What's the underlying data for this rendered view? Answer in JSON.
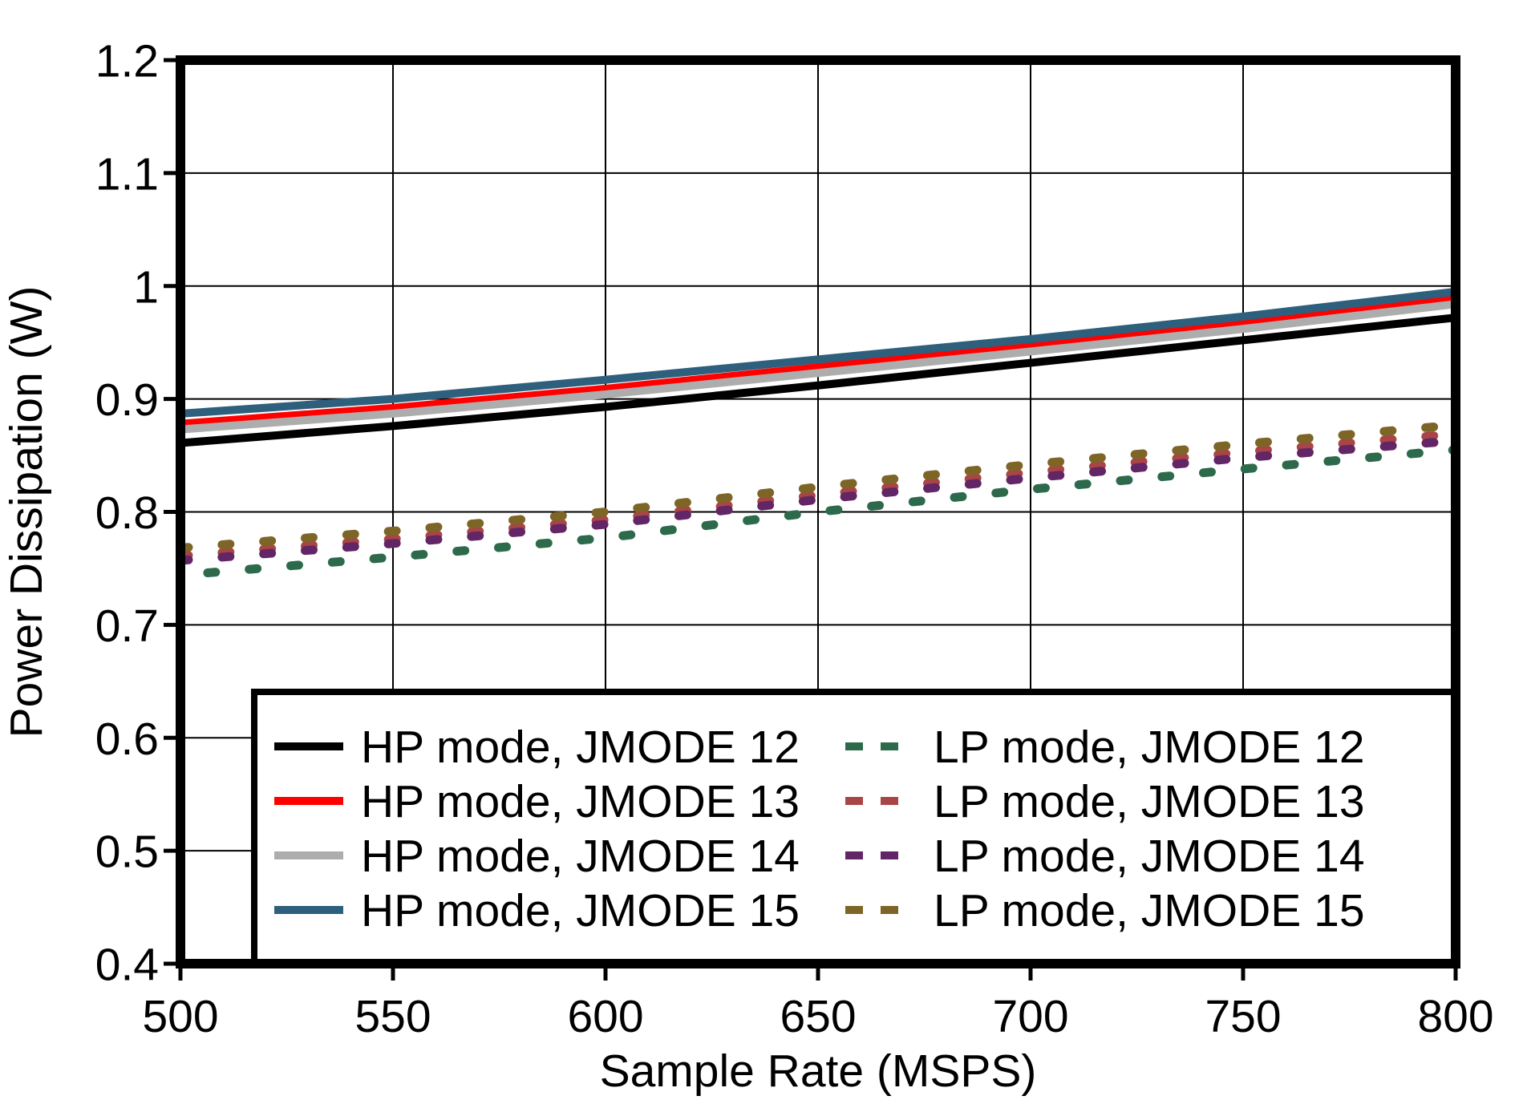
{
  "figure": {
    "background_color": "#FFFFFF",
    "axis_color": "#000000",
    "grid_color": "#000000",
    "text_color": "#000000"
  },
  "chart_data": {
    "type": "line",
    "title": "",
    "xlabel": "Sample Rate (MSPS)",
    "ylabel": "Power Dissipation (W)",
    "xlim": [
      500,
      800
    ],
    "ylim": [
      0.4,
      1.2
    ],
    "xticks": [
      500,
      550,
      600,
      650,
      700,
      750,
      800
    ],
    "yticks": [
      0.4,
      0.5,
      0.6,
      0.7,
      0.8,
      0.9,
      1,
      1.1,
      1.2
    ],
    "grid": true,
    "legend_position": "inside-bottom",
    "x": [
      500,
      550,
      600,
      650,
      700,
      750,
      800
    ],
    "series": [
      {
        "name": "HP mode, JMODE 12",
        "color": "#000000",
        "style": "solid",
        "values": [
          0.861,
          0.876,
          0.893,
          0.912,
          0.932,
          0.952,
          0.972
        ]
      },
      {
        "name": "HP mode, JMODE 13",
        "color": "#FF0000",
        "style": "solid",
        "values": [
          0.878,
          0.892,
          0.909,
          0.928,
          0.947,
          0.967,
          0.989
        ]
      },
      {
        "name": "HP mode, JMODE 14",
        "color": "#ADADAD",
        "style": "solid",
        "values": [
          0.873,
          0.887,
          0.904,
          0.923,
          0.942,
          0.962,
          0.984
        ]
      },
      {
        "name": "HP mode, JMODE 15",
        "color": "#2E5F7C",
        "style": "solid",
        "values": [
          0.887,
          0.9,
          0.917,
          0.935,
          0.953,
          0.973,
          0.995
        ]
      },
      {
        "name": "LP mode, JMODE 12",
        "color": "#2D6A4C",
        "style": "dashed",
        "values": [
          0.744,
          0.76,
          0.777,
          0.8,
          0.82,
          0.838,
          0.855
        ]
      },
      {
        "name": "LP mode, JMODE 13",
        "color": "#A94545",
        "style": "dashed",
        "values": [
          0.761,
          0.776,
          0.793,
          0.815,
          0.835,
          0.853,
          0.869
        ]
      },
      {
        "name": "LP mode, JMODE 14",
        "color": "#622565",
        "style": "dashed",
        "values": [
          0.757,
          0.772,
          0.789,
          0.811,
          0.83,
          0.848,
          0.863
        ]
      },
      {
        "name": "LP mode, JMODE 15",
        "color": "#7D6527",
        "style": "dashed",
        "values": [
          0.768,
          0.783,
          0.8,
          0.822,
          0.842,
          0.86,
          0.877
        ]
      }
    ],
    "legend": {
      "columns": [
        [
          "HP mode, JMODE 12",
          "HP mode, JMODE 13",
          "HP mode, JMODE 14",
          "HP mode, JMODE 15"
        ],
        [
          "LP mode, JMODE 12",
          "LP mode, JMODE 13",
          "LP mode, JMODE 14",
          "LP mode, JMODE 15"
        ]
      ]
    }
  }
}
